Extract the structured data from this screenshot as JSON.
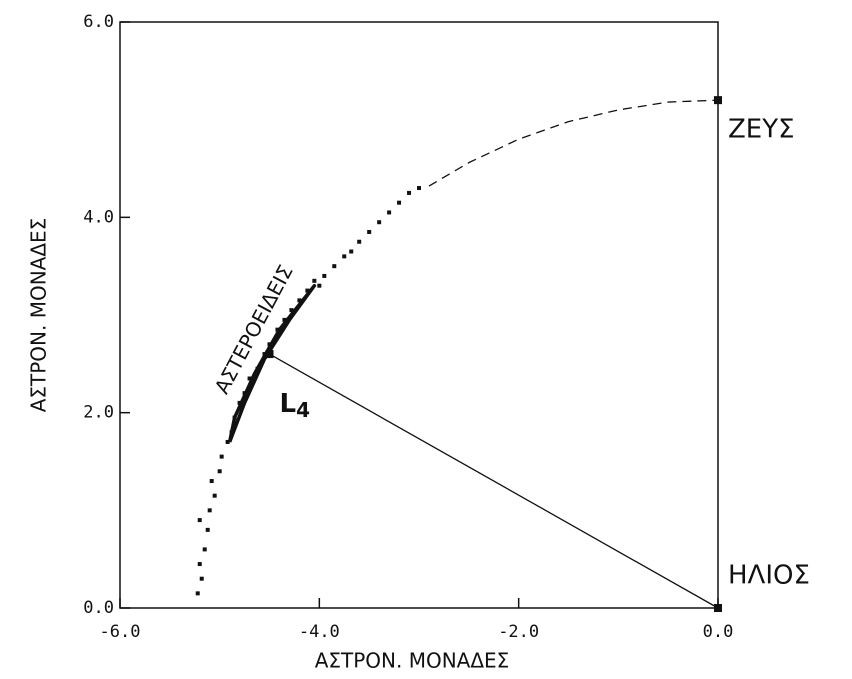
{
  "chart_data": {
    "type": "scatter",
    "x_label": "ΑΣΤΡΟΝ. ΜΟΝΑΔΕΣ",
    "y_label": "ΑΣΤΡΟΝ. ΜΟΝΑΔΕΣ",
    "xlim": [
      -6,
      0
    ],
    "ylim": [
      0,
      6
    ],
    "xticks": [
      {
        "value": -6,
        "label": "-6.0"
      },
      {
        "value": -4,
        "label": "-4.0"
      },
      {
        "value": -2,
        "label": "-2.0"
      },
      {
        "value": 0,
        "label": "0.0"
      }
    ],
    "yticks": [
      {
        "value": 0,
        "label": "0.0"
      },
      {
        "value": 2,
        "label": "2.0"
      },
      {
        "value": 4,
        "label": "4.0"
      },
      {
        "value": 6,
        "label": "6.0"
      }
    ],
    "color": "#111111",
    "series": [
      {
        "type": "scatter",
        "x": [
          -5.22,
          -5.18,
          -5.2,
          -5.15,
          -5.12,
          -5.2,
          -5.1,
          -5.05,
          -5.08,
          -5.0,
          -4.98,
          -4.92,
          -4.88,
          -4.85,
          -4.8,
          -4.75,
          -4.7,
          -4.62,
          -4.55,
          -4.5,
          -4.42,
          -4.35,
          -4.28,
          -4.2,
          -4.12,
          -4.05,
          -4.0,
          -3.95,
          -3.85,
          -3.75,
          -3.68,
          -3.6,
          -3.5,
          -3.4,
          -3.3,
          -3.2,
          -3.1,
          -3.0
        ],
        "y": [
          0.15,
          0.3,
          0.45,
          0.6,
          0.8,
          0.9,
          1.0,
          1.15,
          1.3,
          1.4,
          1.55,
          1.7,
          1.8,
          1.95,
          2.1,
          2.2,
          2.35,
          2.45,
          2.6,
          2.7,
          2.85,
          2.95,
          3.05,
          3.15,
          3.25,
          3.35,
          3.3,
          3.4,
          3.5,
          3.6,
          3.65,
          3.75,
          3.85,
          3.95,
          4.05,
          4.15,
          4.25,
          4.3
        ]
      },
      {
        "type": "line",
        "style": "solid-thick",
        "x": [
          -4.9,
          -4.75,
          -4.55,
          -4.3,
          -4.05,
          -4.4,
          -4.65,
          -4.85,
          -4.9
        ],
        "y": [
          1.7,
          2.1,
          2.55,
          2.95,
          3.3,
          2.85,
          2.4,
          1.95,
          1.7
        ]
      },
      {
        "type": "line",
        "style": "dashed",
        "x": [
          -2.9,
          -2.5,
          -2.0,
          -1.5,
          -1.0,
          -0.5,
          0
        ],
        "y": [
          4.32,
          4.56,
          4.8,
          4.98,
          5.1,
          5.18,
          5.2
        ]
      },
      {
        "type": "line",
        "style": "solid",
        "x": [
          -4.5,
          0
        ],
        "y": [
          2.6,
          0
        ]
      }
    ],
    "points": [
      {
        "label": "ΖΕΥΣ",
        "x": 0,
        "y": 5.2
      },
      {
        "label": "ΗΛΙΟΣ",
        "x": 0,
        "y": 0
      },
      {
        "label": "L",
        "sub": "4",
        "x": -4.5,
        "y": 2.6
      }
    ],
    "annotation": "ΑΣΤΕΡΟΕΙΔΕΙΣ"
  }
}
